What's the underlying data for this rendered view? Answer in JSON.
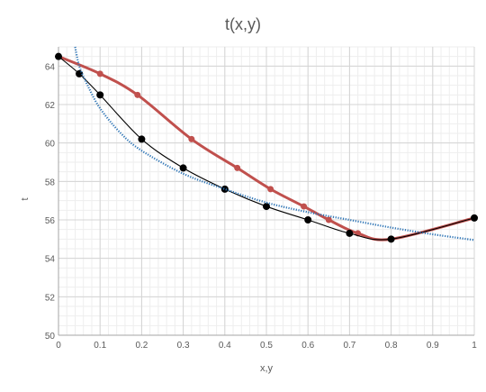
{
  "chart_data": {
    "type": "scatter",
    "title": "t(x,y)",
    "xlabel": "x,y",
    "ylabel": "t",
    "xlim": [
      0,
      1
    ],
    "ylim": [
      50,
      65
    ],
    "grid": true,
    "minor_grid": true,
    "x_ticks": [
      "0",
      "0.1",
      "0.2",
      "0.3",
      "0.4",
      "0.5",
      "0.6",
      "0.7",
      "0.8",
      "0.9",
      "1"
    ],
    "y_ticks": [
      "50",
      "52",
      "54",
      "56",
      "58",
      "60",
      "62",
      "64"
    ],
    "series": [
      {
        "color": "#c0504d",
        "style": "smooth-line-markers",
        "x": [
          0,
          0.1,
          0.19,
          0.32,
          0.43,
          0.51,
          0.59,
          0.65,
          0.72,
          0.8,
          1
        ],
        "y": [
          64.5,
          63.6,
          62.5,
          60.2,
          58.7,
          57.6,
          56.7,
          56.0,
          55.3,
          55.0,
          56.1
        ]
      },
      {
        "color": "#000000",
        "style": "smooth-line-markers",
        "x": [
          0,
          0.05,
          0.1,
          0.2,
          0.3,
          0.4,
          0.5,
          0.6,
          0.7,
          0.8,
          1
        ],
        "y": [
          64.5,
          63.6,
          62.5,
          60.2,
          58.7,
          57.6,
          56.7,
          56.0,
          55.3,
          55.0,
          56.1
        ]
      },
      {
        "color": "#2e75b6",
        "style": "dotted-trendline",
        "x": [
          0.04,
          0.05,
          0.07,
          0.1,
          0.15,
          0.2,
          0.3,
          0.4,
          0.5,
          0.6,
          0.7,
          0.8,
          0.9,
          1.0
        ],
        "y": [
          65.0,
          64.0,
          63.0,
          61.8,
          60.5,
          59.6,
          58.4,
          57.6,
          56.9,
          56.4,
          56.0,
          55.6,
          55.25,
          54.95
        ]
      }
    ]
  }
}
